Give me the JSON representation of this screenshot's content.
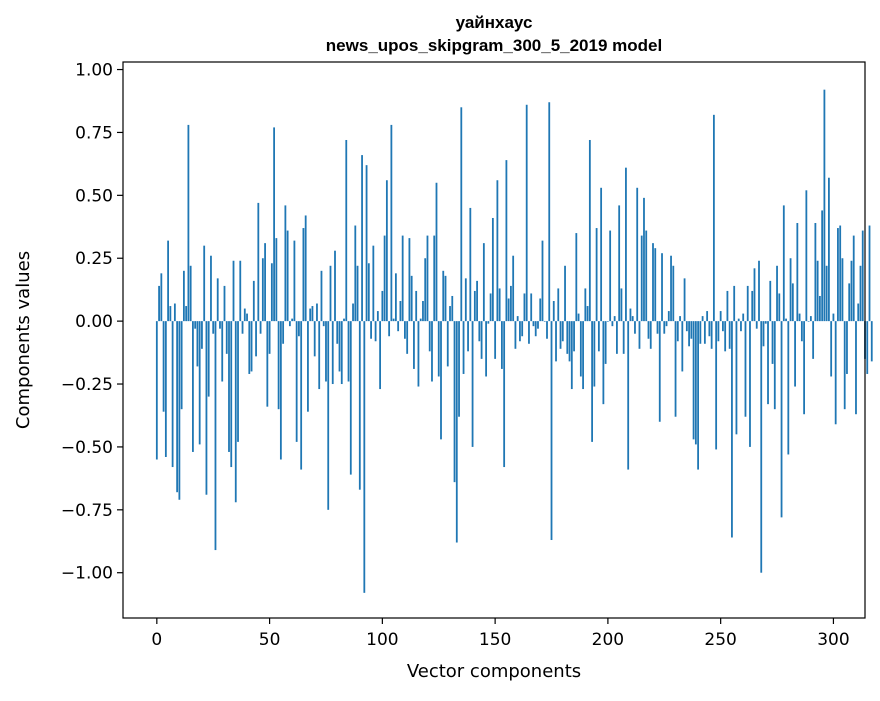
{
  "chart_data": {
    "type": "bar",
    "title_line1": "уайнхаус",
    "title_line2": "news_upos_skipgram_300_5_2019 model",
    "xlabel": "Vector components",
    "ylabel": "Components values",
    "xlim": [
      -15,
      314
    ],
    "ylim": [
      -1.18,
      1.03
    ],
    "xticks": [
      0,
      50,
      100,
      150,
      200,
      250,
      300
    ],
    "xtick_labels": [
      "0",
      "50",
      "100",
      "150",
      "200",
      "250",
      "300"
    ],
    "yticks": [
      1.0,
      0.75,
      0.5,
      0.25,
      0.0,
      -0.25,
      -0.5,
      -0.75,
      -1.0
    ],
    "ytick_labels": [
      "1.00",
      "0.75",
      "0.50",
      "0.25",
      "0.00",
      "−0.25",
      "−0.50",
      "−0.75",
      "−1.00"
    ],
    "color": "#1f77b4",
    "values": [
      -0.55,
      0.14,
      0.19,
      -0.36,
      -0.54,
      0.32,
      0.06,
      -0.58,
      0.07,
      -0.68,
      -0.71,
      -0.35,
      0.2,
      0.06,
      0.78,
      0.22,
      -0.52,
      -0.03,
      -0.18,
      -0.49,
      -0.11,
      0.3,
      -0.69,
      -0.3,
      0.26,
      -0.05,
      -0.91,
      0.17,
      -0.03,
      -0.24,
      0.14,
      -0.13,
      -0.52,
      -0.58,
      0.24,
      -0.72,
      -0.48,
      0.24,
      -0.05,
      0.05,
      0.03,
      -0.21,
      -0.2,
      0.16,
      -0.14,
      0.47,
      -0.05,
      0.25,
      0.31,
      -0.34,
      -0.13,
      0.23,
      0.77,
      0.33,
      -0.35,
      -0.55,
      -0.09,
      0.46,
      0.36,
      -0.02,
      0.01,
      0.32,
      -0.48,
      -0.06,
      -0.59,
      0.37,
      0.42,
      -0.36,
      0.05,
      0.06,
      -0.14,
      0.07,
      -0.27,
      0.2,
      -0.02,
      -0.24,
      -0.75,
      0.22,
      -0.25,
      0.28,
      -0.09,
      -0.2,
      -0.25,
      0.01,
      0.72,
      -0.24,
      -0.61,
      0.07,
      0.38,
      0.22,
      -0.67,
      0.66,
      -1.08,
      0.62,
      0.23,
      -0.07,
      0.3,
      -0.08,
      0.04,
      -0.27,
      0.12,
      0.34,
      0.56,
      -0.06,
      0.78,
      0.01,
      0.19,
      -0.04,
      0.08,
      0.34,
      -0.07,
      -0.13,
      0.33,
      0.18,
      -0.19,
      0.12,
      -0.26,
      0.01,
      0.08,
      0.25,
      0.34,
      -0.12,
      -0.24,
      0.34,
      0.55,
      -0.22,
      -0.47,
      0.2,
      0.18,
      -0.18,
      0.06,
      0.1,
      -0.64,
      -0.88,
      -0.38,
      0.85,
      -0.21,
      0.17,
      -0.12,
      0.45,
      -0.5,
      0.12,
      0.16,
      -0.08,
      -0.15,
      0.31,
      -0.22,
      -0.01,
      0.11,
      0.41,
      -0.15,
      0.56,
      0.13,
      -0.19,
      -0.58,
      0.64,
      0.09,
      0.14,
      0.26,
      -0.11,
      0.02,
      -0.08,
      -0.06,
      0.11,
      0.86,
      -0.09,
      0.11,
      -0.02,
      -0.06,
      -0.03,
      0.09,
      0.32,
      0.0,
      -0.07,
      0.87,
      -0.87,
      0.08,
      -0.16,
      0.13,
      -0.11,
      -0.08,
      0.22,
      -0.13,
      -0.16,
      -0.27,
      -0.12,
      0.35,
      0.03,
      -0.22,
      -0.27,
      0.13,
      0.06,
      0.72,
      -0.48,
      -0.26,
      0.37,
      -0.12,
      0.53,
      -0.33,
      -0.17,
      0.0,
      0.36,
      -0.02,
      0.02,
      -0.13,
      0.46,
      0.13,
      -0.13,
      0.61,
      -0.59,
      0.05,
      0.02,
      -0.05,
      0.53,
      -0.11,
      0.34,
      0.49,
      0.36,
      -0.07,
      -0.11,
      0.31,
      0.29,
      -0.05,
      -0.4,
      0.27,
      -0.05,
      -0.02,
      0.04,
      0.26,
      0.22,
      -0.38,
      -0.08,
      0.02,
      -0.2,
      0.17,
      -0.04,
      -0.1,
      -0.07,
      -0.47,
      -0.49,
      -0.59,
      -0.09,
      0.02,
      -0.09,
      0.04,
      -0.06,
      -0.11,
      0.82,
      -0.51,
      -0.08,
      0.04,
      -0.04,
      -0.12,
      0.12,
      -0.11,
      -0.86,
      0.14,
      -0.45,
      0.01,
      -0.04,
      0.03,
      -0.38,
      0.14,
      -0.5,
      0.12,
      0.21,
      -0.03,
      0.24,
      -1.0,
      -0.1,
      -0.01,
      -0.33,
      0.16,
      -0.17,
      -0.35,
      0.22,
      0.11,
      -0.78,
      0.46,
      0.01,
      -0.53,
      0.25,
      0.15,
      -0.26,
      0.39,
      0.03,
      -0.08,
      -0.37,
      0.52,
      0.0,
      0.02,
      -0.15,
      0.39,
      0.24,
      0.1,
      0.44,
      0.92,
      0.22,
      0.57,
      -0.22,
      0.03,
      -0.41,
      0.37,
      0.38,
      0.25,
      -0.35,
      -0.21,
      0.15,
      0.24,
      0.34,
      -0.37,
      0.07,
      0.22,
      0.36,
      -0.15,
      -0.21,
      0.38,
      -0.16
    ]
  }
}
